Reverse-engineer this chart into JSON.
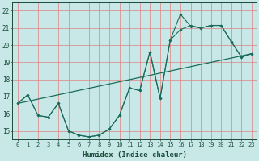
{
  "background_color": "#c8e8e8",
  "grid_color": "#e08080",
  "line_color": "#1a6b5a",
  "xlabel": "Humidex (Indice chaleur)",
  "xlim": [
    -0.5,
    23.5
  ],
  "ylim": [
    14.5,
    22.5
  ],
  "xtick_vals": [
    0,
    1,
    2,
    3,
    4,
    5,
    6,
    7,
    8,
    9,
    10,
    11,
    12,
    13,
    14,
    15,
    16,
    17,
    18,
    19,
    20,
    21,
    22,
    23
  ],
  "ytick_vals": [
    15,
    16,
    17,
    18,
    19,
    20,
    21,
    22
  ],
  "curve1_x": [
    0,
    1,
    2,
    3,
    4,
    5,
    6,
    7,
    8,
    9,
    10,
    11,
    12,
    13,
    14,
    15,
    16,
    17,
    18,
    19,
    20,
    21,
    22,
    23
  ],
  "curve1_y": [
    16.6,
    17.1,
    15.9,
    15.8,
    16.6,
    15.0,
    14.75,
    14.65,
    14.75,
    15.1,
    15.9,
    17.5,
    17.35,
    19.6,
    16.9,
    20.3,
    20.9,
    21.15,
    21.0,
    21.15,
    21.15,
    20.2,
    19.3,
    19.5
  ],
  "curve2_x": [
    0,
    1,
    2,
    3,
    4,
    5,
    6,
    7,
    8,
    9,
    10,
    11,
    12,
    13,
    14,
    15,
    16,
    17,
    18,
    19,
    20,
    21,
    22,
    23
  ],
  "curve2_y": [
    16.6,
    17.1,
    15.9,
    15.8,
    16.6,
    15.0,
    14.75,
    14.65,
    14.75,
    15.1,
    15.9,
    17.5,
    17.35,
    19.6,
    16.9,
    20.3,
    21.8,
    21.1,
    21.0,
    21.15,
    21.15,
    20.2,
    19.3,
    19.5
  ],
  "trend_x": [
    0,
    23
  ],
  "trend_y": [
    16.6,
    19.5
  ]
}
